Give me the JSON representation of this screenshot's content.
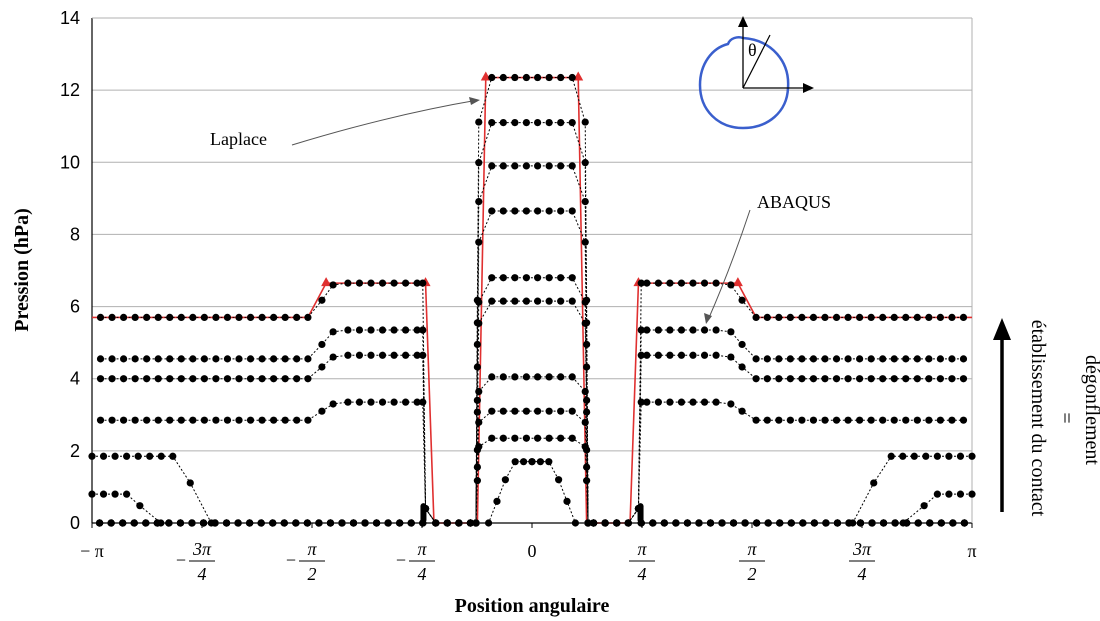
{
  "chart_data": {
    "type": "line",
    "xlabel": "Position angulaire",
    "ylabel": "Pression (hPa)",
    "xlim": [
      -3.1416,
      3.1416
    ],
    "ylim": [
      0,
      14
    ],
    "grid": true,
    "yticks": [
      0,
      2,
      4,
      6,
      8,
      10,
      12,
      14
    ],
    "xticks": [
      {
        "value": -3.1416,
        "label": "− π"
      },
      {
        "value": -2.3562,
        "num": "3π",
        "den": "4",
        "sign": "−"
      },
      {
        "value": -1.5708,
        "num": "π",
        "den": "2",
        "sign": "−"
      },
      {
        "value": -0.7854,
        "num": "π",
        "den": "4",
        "sign": "−"
      },
      {
        "value": 0,
        "label": "0"
      },
      {
        "value": 0.7854,
        "num": "π",
        "den": "4",
        "sign": ""
      },
      {
        "value": 1.5708,
        "num": "π",
        "den": "2",
        "sign": ""
      },
      {
        "value": 2.3562,
        "num": "3π",
        "den": "4",
        "sign": ""
      },
      {
        "value": 3.1416,
        "label": "π"
      }
    ],
    "series": [
      {
        "name": "Laplace",
        "color": "#e03030",
        "marker": "triangle",
        "x": [
          -3.1416,
          -1.6,
          -1.47,
          -0.76,
          -0.7,
          -0.39,
          -0.33,
          0.33,
          0.39,
          0.7,
          0.76,
          1.47,
          1.6,
          3.1416
        ],
        "y": [
          5.7,
          5.7,
          6.65,
          6.65,
          0,
          0,
          12.35,
          12.35,
          0,
          0,
          6.65,
          6.65,
          5.7,
          5.7
        ]
      },
      {
        "name": "ABAQUS",
        "color": "#000000",
        "marker": "dot",
        "profiles": [
          {
            "edge": 5.7,
            "mid": 6.65,
            "top": 12.35
          },
          {
            "edge": 4.55,
            "mid": 5.35,
            "top": 11.1
          },
          {
            "edge": 4.0,
            "mid": 4.65,
            "top": 9.9
          },
          {
            "edge": 2.85,
            "mid": 3.35,
            "top": 8.65
          },
          {
            "edge": 0,
            "mid": 0,
            "top": 6.8
          },
          {
            "edge": 0,
            "mid": 0,
            "top": 6.15
          },
          {
            "edge": 0,
            "mid": 0,
            "top": 4.05
          },
          {
            "edge": 0,
            "mid": 0,
            "top": 3.1
          },
          {
            "edge": 0,
            "mid": 0,
            "top": 2.35
          },
          {
            "edge": 0,
            "mid": 0,
            "top": 1.7,
            "narrow": true
          }
        ],
        "side_steps": [
          {
            "level": 1.85,
            "end": -2.49
          },
          {
            "level": 0.8,
            "end": -2.85
          }
        ]
      }
    ],
    "annotations": {
      "laplace": "Laplace",
      "abaqus": "ABAQUS",
      "inset_angle": "θ",
      "arrow_line1": "dégonflement",
      "arrow_line2": "=",
      "arrow_line3": "établissement du contact"
    }
  },
  "colors": {
    "laplace": "#e03030",
    "abaqus": "#000000",
    "grid": "#b0b0b0",
    "inset_circle": "#3a5fcd"
  }
}
